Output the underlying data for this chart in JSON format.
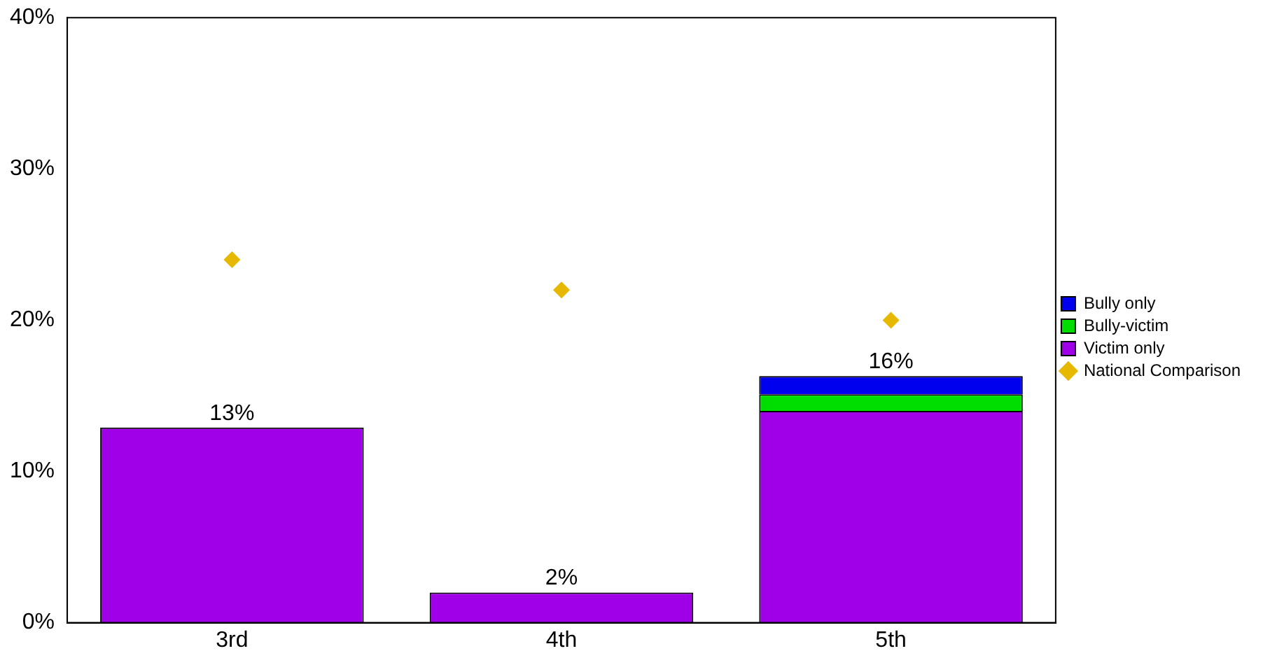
{
  "chart_data": {
    "type": "bar",
    "stacked": true,
    "categories": [
      "3rd",
      "4th",
      "5th"
    ],
    "series": [
      {
        "name": "National Comparison",
        "type": "scatter",
        "color": "#e6b800",
        "values": [
          24,
          22,
          20
        ]
      },
      {
        "name": "Victim only",
        "color": "#a000e8",
        "values": [
          12.9,
          2.0,
          14.0
        ]
      },
      {
        "name": "Bully-victim",
        "color": "#00dd00",
        "values": [
          0,
          0,
          1.1
        ]
      },
      {
        "name": "Bully only",
        "color": "#0000ee",
        "values": [
          0,
          0,
          1.2
        ]
      }
    ],
    "totals": [
      "13%",
      "2%",
      "16%"
    ],
    "ylim": [
      0,
      40
    ],
    "yticks": [
      {
        "value": 0,
        "label": "0%"
      },
      {
        "value": 10,
        "label": "10%"
      },
      {
        "value": 20,
        "label": "20%"
      },
      {
        "value": 30,
        "label": "30%"
      },
      {
        "value": 40,
        "label": "40%"
      }
    ],
    "grid": false,
    "legend": "right",
    "marker": "diamond"
  }
}
